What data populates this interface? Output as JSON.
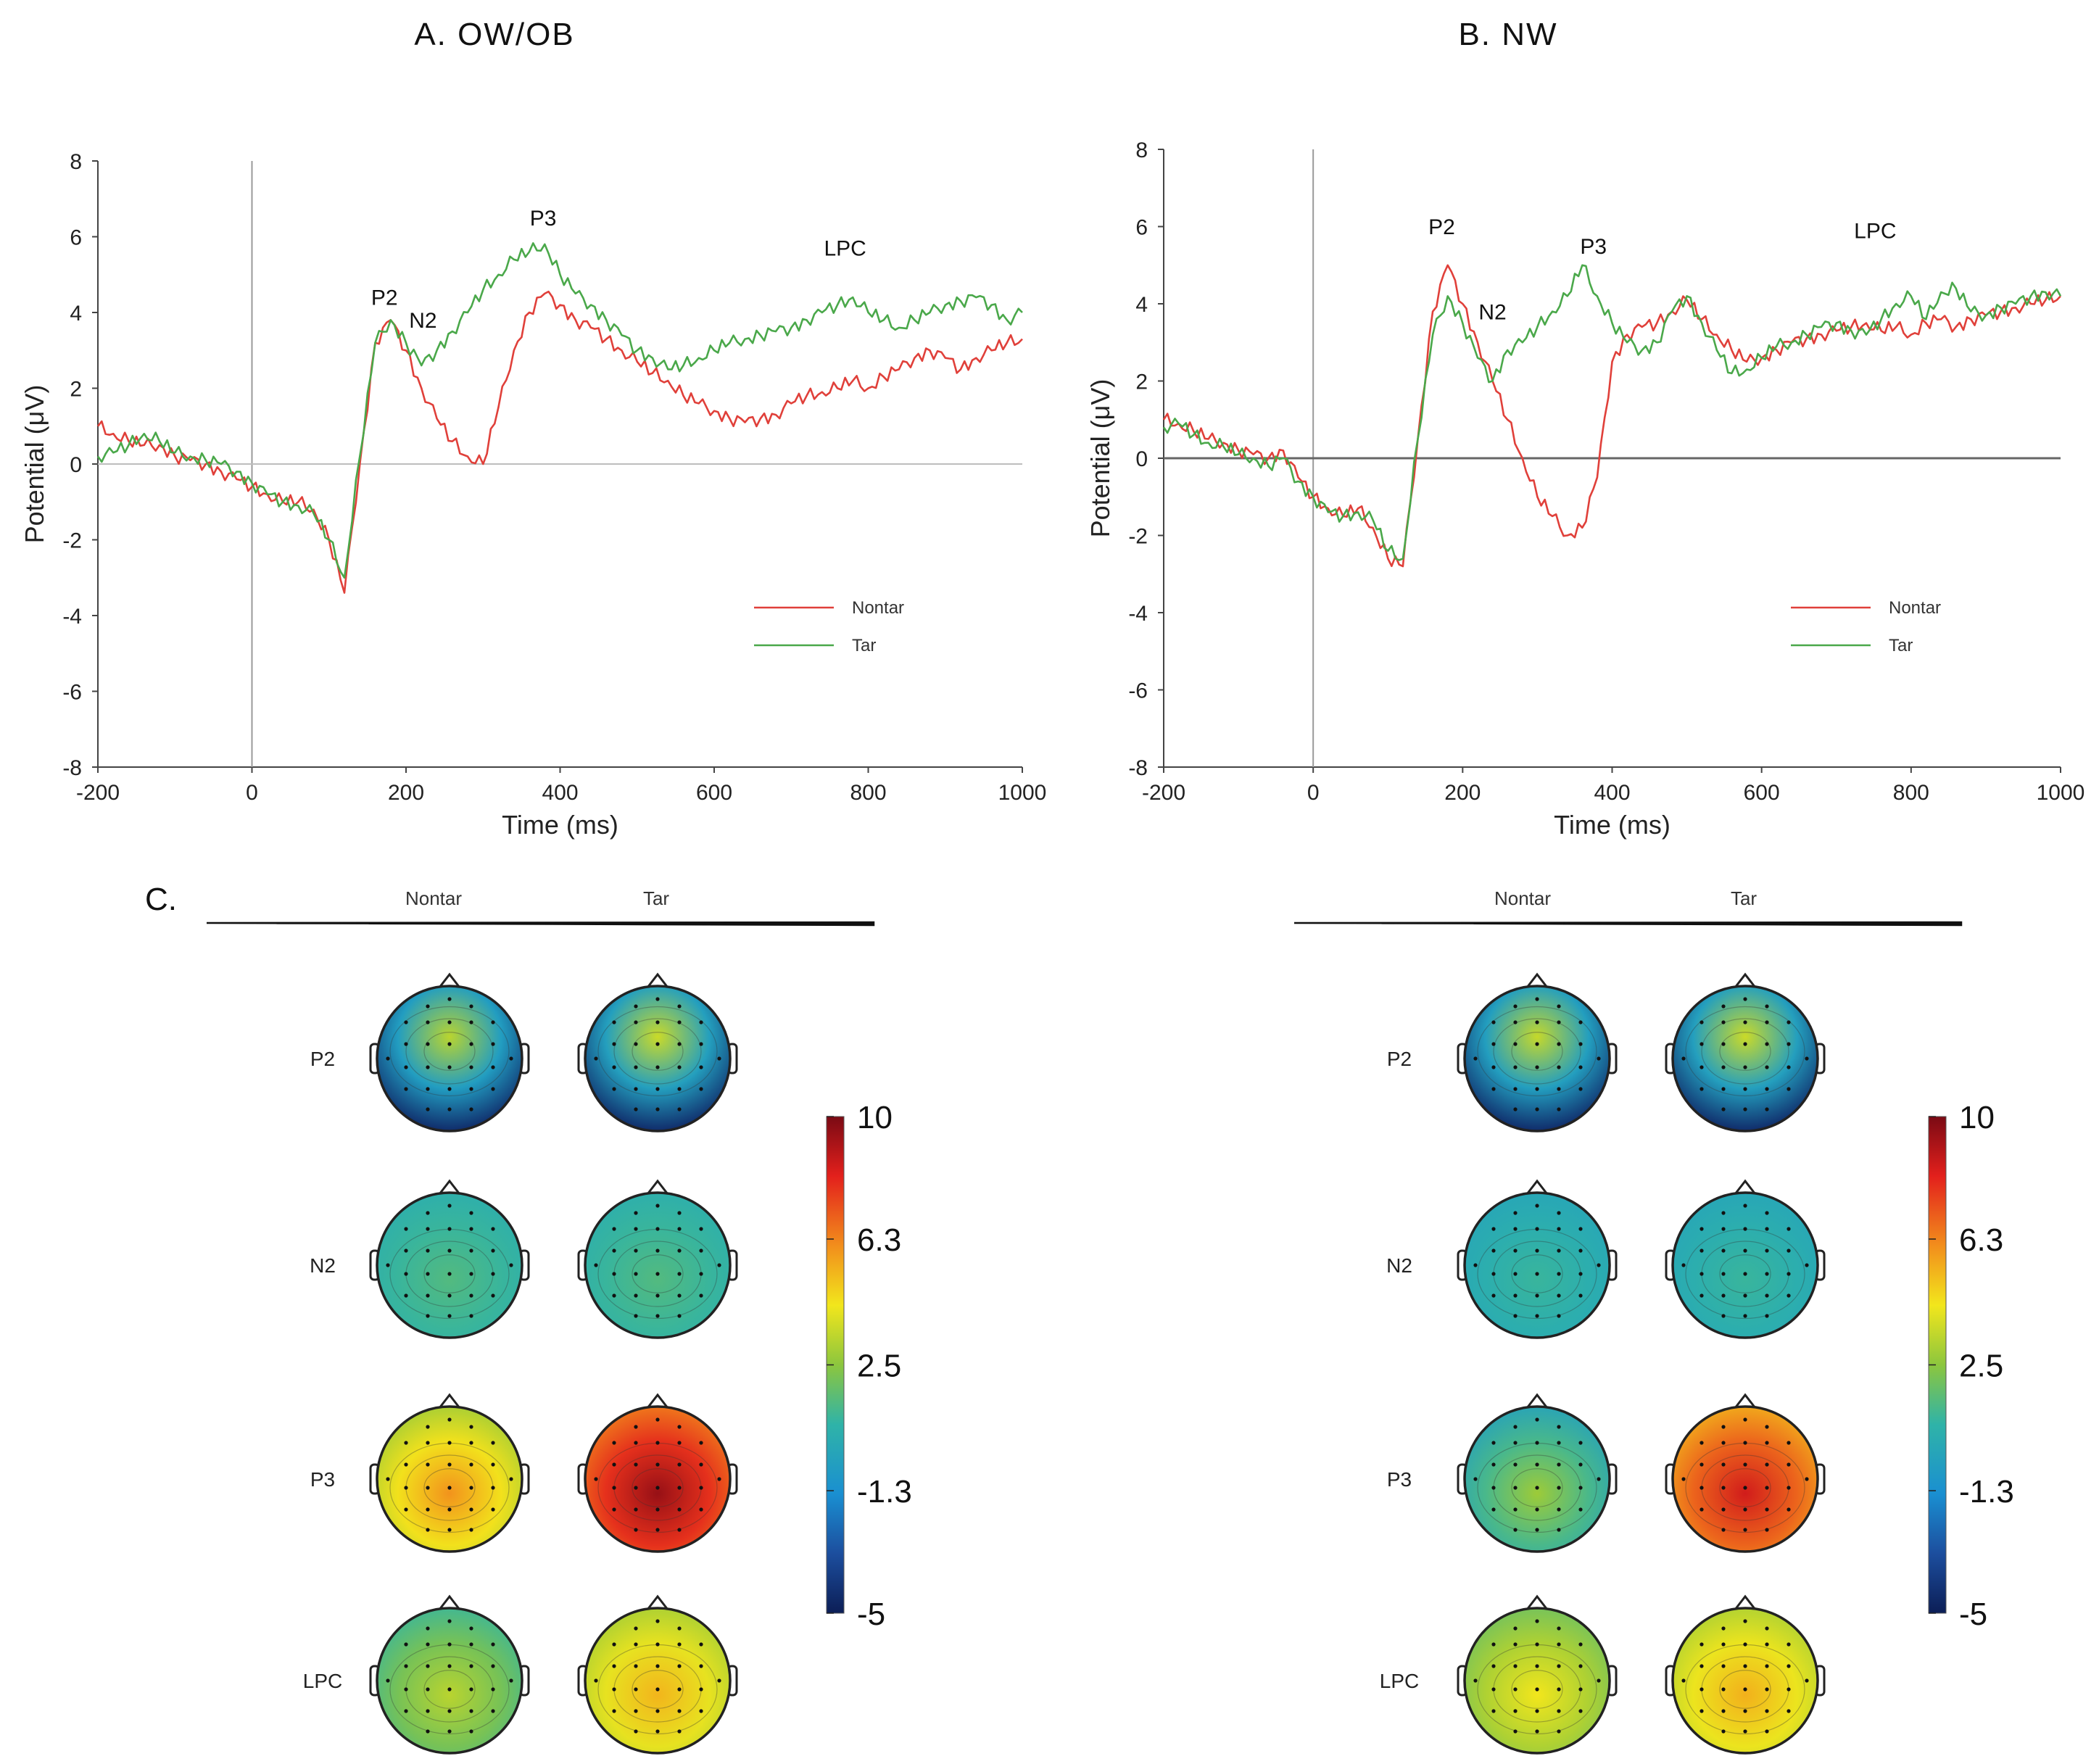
{
  "chart_data": [
    {
      "type": "line",
      "title": "A. OW/OB",
      "xlabel": "Time (ms)",
      "ylabel": "Potential (μV)",
      "xlim": [
        -200,
        1000
      ],
      "ylim": [
        -8,
        8
      ],
      "xticks": [
        "-200",
        "0",
        "200",
        "400",
        "600",
        "800",
        "1000"
      ],
      "yticks": [
        "8",
        "6",
        "4",
        "2",
        "0",
        "-2",
        "-4",
        "-6",
        "-8"
      ],
      "components": [
        "P2",
        "N2",
        "P3",
        "LPC"
      ],
      "series": [
        {
          "name": "Nontar",
          "color": "#e0403a",
          "x": [
            -200,
            -180,
            -160,
            -140,
            -120,
            -100,
            -80,
            -60,
            -40,
            -20,
            0,
            20,
            40,
            60,
            80,
            100,
            120,
            140,
            160,
            180,
            200,
            220,
            240,
            260,
            280,
            300,
            320,
            340,
            360,
            380,
            400,
            420,
            440,
            460,
            480,
            500,
            520,
            540,
            560,
            580,
            600,
            620,
            640,
            660,
            680,
            700,
            720,
            740,
            760,
            780,
            800,
            820,
            840,
            860,
            880,
            900,
            920,
            940,
            960,
            980,
            1000
          ],
          "y": [
            1.0,
            0.8,
            0.6,
            0.5,
            0.5,
            0.2,
            0.1,
            0.0,
            -0.2,
            -0.4,
            -0.6,
            -0.8,
            -1.0,
            -1.0,
            -1.2,
            -2.0,
            -3.4,
            0.0,
            3.2,
            3.8,
            3.0,
            2.0,
            1.2,
            0.6,
            0.2,
            0.0,
            1.5,
            3.0,
            4.0,
            4.5,
            4.2,
            3.8,
            3.6,
            3.3,
            3.0,
            2.7,
            2.4,
            2.2,
            1.8,
            1.6,
            1.4,
            1.2,
            1.1,
            1.2,
            1.3,
            1.6,
            1.8,
            1.9,
            2.0,
            2.2,
            2.0,
            2.3,
            2.5,
            2.8,
            3.0,
            2.8,
            2.5,
            2.8,
            3.0,
            3.2,
            3.3
          ]
        },
        {
          "name": "Tar",
          "color": "#4aa84a",
          "x": [
            -200,
            -180,
            -160,
            -140,
            -120,
            -100,
            -80,
            -60,
            -40,
            -20,
            0,
            20,
            40,
            60,
            80,
            100,
            120,
            140,
            160,
            180,
            200,
            220,
            240,
            260,
            280,
            300,
            320,
            340,
            360,
            380,
            400,
            420,
            440,
            460,
            480,
            500,
            520,
            540,
            560,
            580,
            600,
            620,
            640,
            660,
            680,
            700,
            720,
            740,
            760,
            780,
            800,
            820,
            840,
            860,
            880,
            900,
            920,
            940,
            960,
            980,
            1000
          ],
          "y": [
            0.2,
            0.3,
            0.5,
            0.8,
            0.6,
            0.3,
            0.2,
            0.1,
            0.0,
            -0.2,
            -0.5,
            -0.8,
            -1.0,
            -1.1,
            -1.3,
            -2.0,
            -3.0,
            0.2,
            3.2,
            3.8,
            3.2,
            2.6,
            3.0,
            3.5,
            4.0,
            4.6,
            5.0,
            5.4,
            5.6,
            5.8,
            5.0,
            4.5,
            4.2,
            3.8,
            3.4,
            3.0,
            2.8,
            2.5,
            2.6,
            2.8,
            3.0,
            3.2,
            3.3,
            3.4,
            3.5,
            3.6,
            3.8,
            4.0,
            4.2,
            4.4,
            4.0,
            3.8,
            3.6,
            3.8,
            4.0,
            4.2,
            4.3,
            4.4,
            4.2,
            3.8,
            4.0
          ]
        }
      ],
      "legend": [
        "Nontar",
        "Tar"
      ]
    },
    {
      "type": "line",
      "title": "B. NW",
      "xlabel": "Time (ms)",
      "ylabel": "Potential (μV)",
      "xlim": [
        -200,
        1000
      ],
      "ylim": [
        -8,
        8
      ],
      "xticks": [
        "-200",
        "0",
        "200",
        "400",
        "600",
        "800",
        "1000"
      ],
      "yticks": [
        "8",
        "6",
        "4",
        "2",
        "0",
        "-2",
        "-4",
        "-6",
        "-8"
      ],
      "components": [
        "P2",
        "N2",
        "P3",
        "LPC"
      ],
      "series": [
        {
          "name": "Nontar",
          "color": "#e0403a",
          "x": [
            -200,
            -180,
            -160,
            -140,
            -120,
            -100,
            -80,
            -60,
            -40,
            -20,
            0,
            20,
            40,
            60,
            80,
            100,
            120,
            140,
            160,
            180,
            200,
            220,
            240,
            260,
            280,
            300,
            320,
            340,
            360,
            380,
            400,
            420,
            440,
            460,
            480,
            500,
            520,
            540,
            560,
            580,
            600,
            620,
            640,
            660,
            680,
            700,
            720,
            740,
            760,
            780,
            800,
            820,
            840,
            860,
            880,
            900,
            920,
            940,
            960,
            980,
            1000
          ],
          "y": [
            1.0,
            0.9,
            0.7,
            0.5,
            0.4,
            0.2,
            0.1,
            0.0,
            0.2,
            -0.5,
            -1.0,
            -1.3,
            -1.5,
            -1.3,
            -1.8,
            -2.6,
            -2.8,
            0.5,
            3.8,
            5.0,
            4.0,
            3.0,
            2.0,
            1.0,
            0.0,
            -1.0,
            -1.5,
            -2.0,
            -1.8,
            -0.5,
            2.5,
            3.2,
            3.4,
            3.5,
            3.8,
            4.1,
            3.6,
            3.2,
            2.8,
            2.5,
            2.6,
            2.8,
            3.0,
            3.1,
            3.2,
            3.3,
            3.4,
            3.5,
            3.3,
            3.4,
            3.2,
            3.5,
            3.6,
            3.4,
            3.6,
            3.7,
            3.8,
            3.9,
            4.0,
            4.1,
            4.2
          ]
        },
        {
          "name": "Tar",
          "color": "#4aa84a",
          "x": [
            -200,
            -180,
            -160,
            -140,
            -120,
            -100,
            -80,
            -60,
            -40,
            -20,
            0,
            20,
            40,
            60,
            80,
            100,
            120,
            140,
            160,
            180,
            200,
            220,
            240,
            260,
            280,
            300,
            320,
            340,
            360,
            380,
            400,
            420,
            440,
            460,
            480,
            500,
            520,
            540,
            560,
            580,
            600,
            620,
            640,
            660,
            680,
            700,
            720,
            740,
            760,
            780,
            800,
            820,
            840,
            860,
            880,
            900,
            920,
            940,
            960,
            980,
            1000
          ],
          "y": [
            0.8,
            0.9,
            0.6,
            0.4,
            0.3,
            0.1,
            0.0,
            -0.2,
            0.0,
            -0.6,
            -1.0,
            -1.4,
            -1.5,
            -1.4,
            -1.6,
            -2.4,
            -2.6,
            0.5,
            3.2,
            4.2,
            3.5,
            2.6,
            2.0,
            2.8,
            3.0,
            3.4,
            3.8,
            4.2,
            5.0,
            4.2,
            3.5,
            3.0,
            2.8,
            3.0,
            3.8,
            4.2,
            3.5,
            2.8,
            2.2,
            2.3,
            2.6,
            2.9,
            3.0,
            3.2,
            3.4,
            3.5,
            3.3,
            3.2,
            3.6,
            4.0,
            4.2,
            3.6,
            4.3,
            4.4,
            3.8,
            3.7,
            3.9,
            4.0,
            4.2,
            4.3,
            4.2
          ]
        }
      ],
      "legend": [
        "Nontar",
        "Tar"
      ]
    }
  ],
  "topography": {
    "section_label": "C.",
    "conditions": [
      "Nontar",
      "Tar"
    ],
    "components": [
      "P2",
      "N2",
      "P3",
      "LPC"
    ],
    "colorbar": {
      "ticks": [
        "10",
        "6.3",
        "2.5",
        "-1.3",
        "-5"
      ],
      "min": -5,
      "max": 10
    },
    "panels": [
      {
        "group": "A. OW/OB",
        "maps": [
          [
            2.5,
            2.8
          ],
          [
            1.0,
            1.0
          ],
          [
            5.0,
            8.5
          ],
          [
            2.5,
            4.5
          ]
        ]
      },
      {
        "group": "B. NW",
        "maps": [
          [
            2.7,
            2.8
          ],
          [
            0.5,
            0.5
          ],
          [
            1.8,
            7.5
          ],
          [
            3.5,
            4.6
          ]
        ]
      }
    ]
  },
  "colors": {
    "nontar": "#e0403a",
    "tar": "#4aa84a",
    "axis": "#444444",
    "zero_line": "#b8b8b8"
  }
}
